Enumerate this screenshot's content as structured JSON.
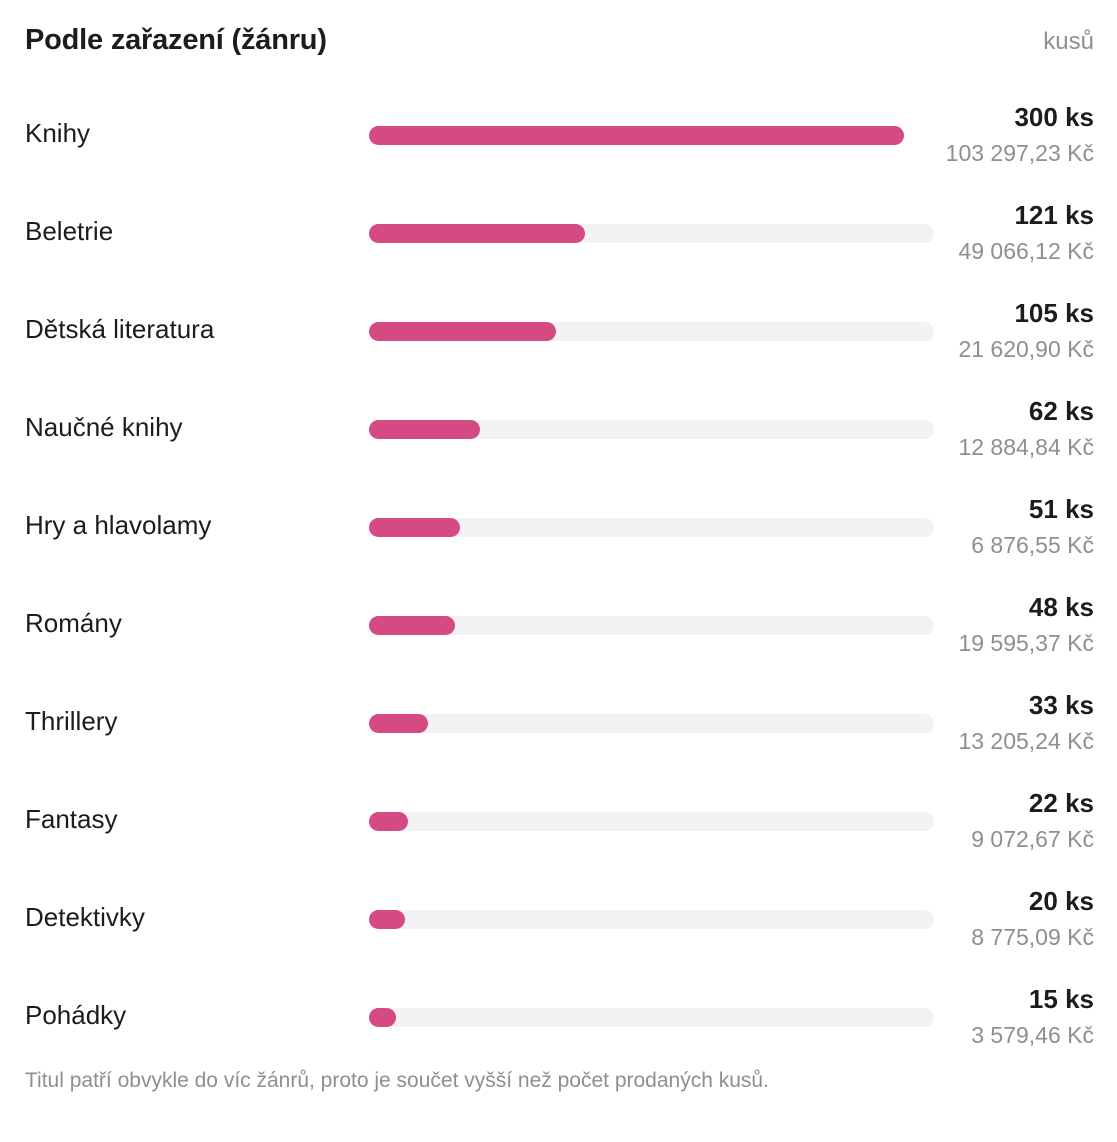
{
  "header": {
    "title": "Podle zařazení (žánru)",
    "unit_toggle": "kusů"
  },
  "chart_data": {
    "type": "bar",
    "orientation": "horizontal",
    "categories": [
      "Knihy",
      "Beletrie",
      "Dětská literatura",
      "Naučné knihy",
      "Hry a hlavolamy",
      "Romány",
      "Thrillery",
      "Fantasy",
      "Detektivky",
      "Pohádky"
    ],
    "values": [
      300,
      121,
      105,
      62,
      51,
      48,
      33,
      22,
      20,
      15
    ],
    "value_labels": [
      "300 ks",
      "121 ks",
      "105 ks",
      "62 ks",
      "51 ks",
      "48 ks",
      "33 ks",
      "22 ks",
      "20 ks",
      "15 ks"
    ],
    "secondary_labels": [
      "103 297,23 Kč",
      "49 066,12 Kč",
      "21 620,90 Kč",
      "12 884,84 Kč",
      "6 876,55 Kč",
      "19 595,37 Kč",
      "13 205,24 Kč",
      "9 072,67 Kč",
      "8 775,09 Kč",
      "3 579,46 Kč"
    ],
    "max": 300,
    "bar_color": "#d54a82",
    "track_color": "#f2f2f5",
    "title": "Podle zařazení (žánru)",
    "xlabel": "",
    "ylabel": ""
  },
  "footnote": "Titul patří obvykle do víc žánrů, proto je součet vyšší než počet prodaných kusů."
}
